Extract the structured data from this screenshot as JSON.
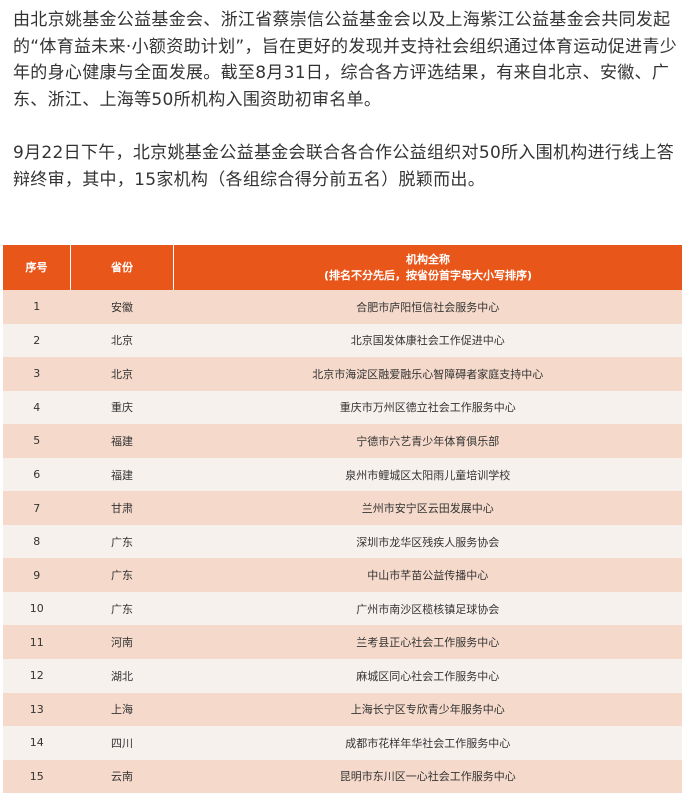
{
  "paragraphs": [
    {
      "lines": [
        "由北京姚基金公益基金会、浙江省蔡崇信公益基金会以及上海紫江公益基金会共同发起",
        "的“体育益未来·小额资助计划”，旨在更好的发现并支持社会组织通过体育运动促进青少",
        "年的身心健康与全面发展。截至8月31日，综合各方评选结果，有来自北京、安徽、广",
        "东、浙江、上海等50所机构入围资助初审名单。"
      ]
    },
    {
      "lines": [
        "9月22日下午，北京姚基金公益基金会联合各合作公益组织对50所入围机构进行线上答",
        "辩终审，其中，15家机构（各组综合得分前五名）脱颖而出。"
      ]
    }
  ],
  "table": {
    "colors": {
      "header": "#e9561a",
      "row_odd": "#f5dacb",
      "row_even": "#f7f1ee"
    },
    "headers": {
      "index": "序号",
      "province": "省份",
      "name": "机构全称",
      "name_note": "(排名不分先后，按省份首字母大小写排序)"
    },
    "rows": [
      {
        "index": "1",
        "province": "安徽",
        "name": "合肥市庐阳恒信社会服务中心"
      },
      {
        "index": "2",
        "province": "北京",
        "name": "北京国发体康社会工作促进中心"
      },
      {
        "index": "3",
        "province": "北京",
        "name": "北京市海淀区融爱融乐心智障碍者家庭支持中心"
      },
      {
        "index": "4",
        "province": "重庆",
        "name": "重庆市万州区德立社会工作服务中心"
      },
      {
        "index": "5",
        "province": "福建",
        "name": "宁德市六艺青少年体育俱乐部"
      },
      {
        "index": "6",
        "province": "福建",
        "name": "泉州市鲤城区太阳雨儿童培训学校"
      },
      {
        "index": "7",
        "province": "甘肃",
        "name": "兰州市安宁区云田发展中心"
      },
      {
        "index": "8",
        "province": "广东",
        "name": "深圳市龙华区残疾人服务协会"
      },
      {
        "index": "9",
        "province": "广东",
        "name": "中山市芊苗公益传播中心"
      },
      {
        "index": "10",
        "province": "广东",
        "name": "广州市南沙区榄核镇足球协会"
      },
      {
        "index": "11",
        "province": "河南",
        "name": "兰考县正心社会工作服务中心"
      },
      {
        "index": "12",
        "province": "湖北",
        "name": "麻城区同心社会工作服务中心"
      },
      {
        "index": "13",
        "province": "上海",
        "name": "上海长宁区专欣青少年服务中心"
      },
      {
        "index": "14",
        "province": "四川",
        "name": "成都市花样年华社会工作服务中心"
      },
      {
        "index": "15",
        "province": "云南",
        "name": "昆明市东川区一心社会工作服务中心"
      }
    ]
  }
}
